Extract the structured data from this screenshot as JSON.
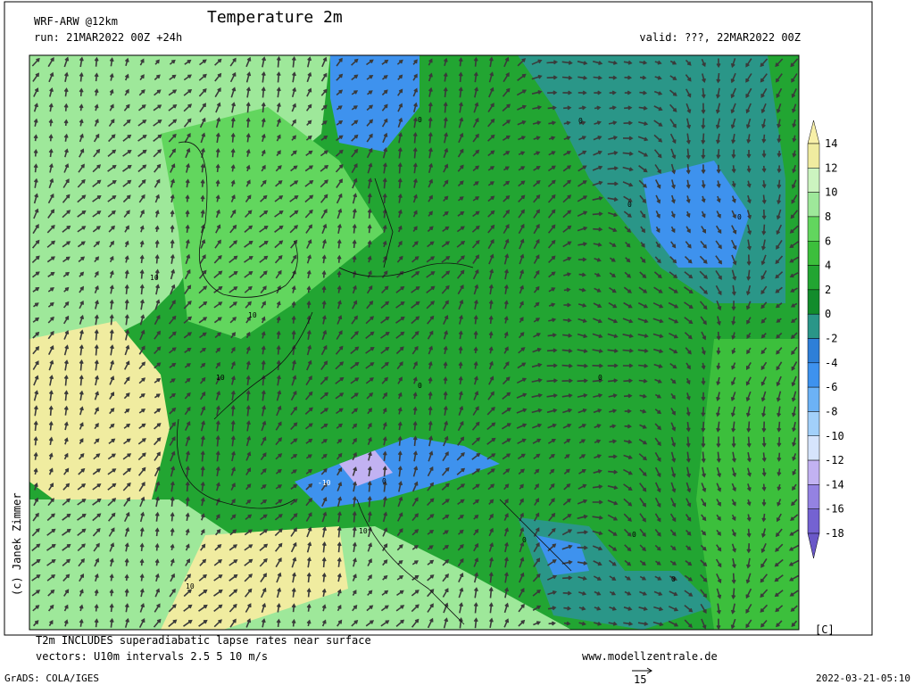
{
  "header": {
    "model": "WRF-ARW @12km",
    "title": "Temperature 2m",
    "run": "run: 21MAR2022 00Z +24h",
    "valid": "valid: ???, 22MAR2022 00Z"
  },
  "map": {
    "copyright": "(c) Janek Zimmer",
    "contour_labels": [
      0,
      0,
      0,
      0,
      10,
      10,
      10,
      10,
      -10,
      0,
      0,
      0,
      0,
      10,
      0,
      0
    ]
  },
  "colorbar": {
    "unit": "[C]",
    "ticks": [
      14,
      12,
      10,
      8,
      6,
      4,
      2,
      0,
      -2,
      -4,
      -6,
      -8,
      -10,
      -12,
      -14,
      -16,
      -18
    ],
    "colors": [
      "#f8f0a8",
      "#f0eca0",
      "#ccf4c0",
      "#9ee89a",
      "#62d65e",
      "#3cbf3c",
      "#22a532",
      "#128c2c",
      "#2a9688",
      "#2e7fd8",
      "#3e92ee",
      "#6cb2f6",
      "#a2d0fa",
      "#d6e4fc",
      "#c2b2f2",
      "#9482e2",
      "#7462d2",
      "#6a58c8"
    ]
  },
  "footer": {
    "note1": "T2m INCLUDES superadiabatic lapse rates near surface",
    "note2": "vectors: U10m intervals 2.5 5 10 m/s",
    "site": "www.modellzentrale.de",
    "grads": "GrADS: COLA/IGES",
    "ref_vector": "15",
    "stamp": "2022-03-21-05:10"
  }
}
